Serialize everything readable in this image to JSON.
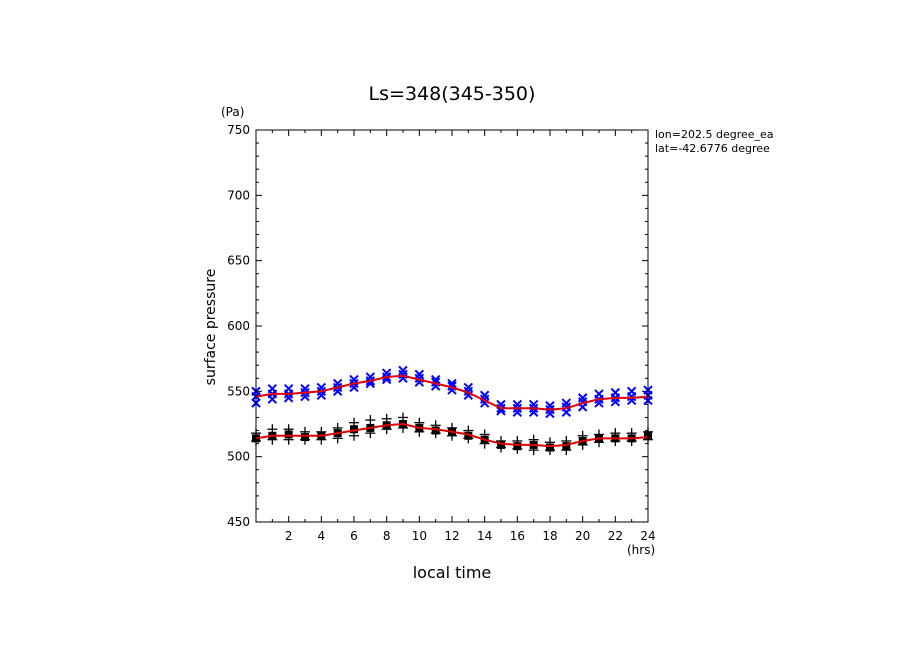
{
  "chart_data": {
    "type": "scatter",
    "title": "Ls=348(345-350)",
    "xlabel": "local time",
    "ylabel": "surface pressure",
    "xunit": "(hrs)",
    "yunit": "(Pa)",
    "xlim": [
      0,
      24
    ],
    "ylim": [
      450,
      750
    ],
    "x_ticks": [
      2,
      4,
      6,
      8,
      10,
      12,
      14,
      16,
      18,
      20,
      22,
      24
    ],
    "y_ticks": [
      450,
      500,
      550,
      600,
      650,
      700,
      750
    ],
    "annotations": [
      "lon=202.5 degree_ea",
      "lat=-42.6776 degree"
    ],
    "grid": false,
    "colors": {
      "upper": "#0000ff",
      "lower": "#000000",
      "fit": "#e00000"
    },
    "series": [
      {
        "marker": "x",
        "color": "#0000ff",
        "x": [
          0,
          1,
          2,
          3,
          4,
          5,
          6,
          7,
          8,
          9,
          10,
          11,
          12,
          13,
          14,
          15,
          16,
          17,
          18,
          19,
          20,
          21,
          22,
          23,
          24
        ],
        "y": [
          546,
          548,
          548,
          549,
          550,
          553,
          556,
          558,
          561,
          563,
          560,
          557,
          554,
          550,
          544,
          537,
          537,
          537,
          536,
          538,
          542,
          544,
          545,
          546,
          547
        ]
      },
      {
        "marker": "x",
        "color": "#0000ff",
        "x": [
          0,
          1,
          2,
          3,
          4,
          5,
          6,
          7,
          8,
          9,
          10,
          11,
          12,
          13,
          14,
          15,
          16,
          17,
          18,
          19,
          20,
          21,
          22,
          23,
          24
        ],
        "y": [
          541,
          544,
          545,
          546,
          547,
          550,
          553,
          556,
          559,
          560,
          557,
          554,
          551,
          547,
          541,
          535,
          534,
          534,
          533,
          534,
          538,
          541,
          542,
          543,
          543
        ]
      },
      {
        "marker": "x",
        "color": "#0000ff",
        "x": [
          0,
          1,
          2,
          3,
          4,
          5,
          6,
          7,
          8,
          9,
          10,
          11,
          12,
          13,
          14,
          15,
          16,
          17,
          18,
          19,
          20,
          21,
          22,
          23,
          24
        ],
        "y": [
          550,
          552,
          552,
          552,
          553,
          556,
          559,
          561,
          564,
          566,
          563,
          559,
          556,
          553,
          547,
          540,
          540,
          540,
          539,
          541,
          545,
          548,
          549,
          550,
          551
        ]
      },
      {
        "marker": "square",
        "color": "#000000",
        "x": [
          0,
          1,
          2,
          3,
          4,
          5,
          6,
          7,
          8,
          9,
          10,
          11,
          12,
          13,
          14,
          15,
          16,
          17,
          18,
          19,
          20,
          21,
          22,
          23,
          24
        ],
        "y": [
          514,
          516,
          517,
          515,
          516,
          518,
          521,
          522,
          524,
          525,
          522,
          520,
          519,
          516,
          513,
          509,
          508,
          509,
          507,
          508,
          512,
          514,
          514,
          514,
          516
        ]
      },
      {
        "marker": "+",
        "color": "#000000",
        "x": [
          0,
          1,
          2,
          3,
          4,
          5,
          6,
          7,
          8,
          9,
          10,
          11,
          12,
          13,
          14,
          15,
          16,
          17,
          18,
          19,
          20,
          21,
          22,
          23,
          24
        ],
        "y": [
          518,
          521,
          521,
          519,
          519,
          522,
          526,
          528,
          529,
          530,
          526,
          524,
          522,
          520,
          517,
          512,
          512,
          513,
          511,
          512,
          516,
          517,
          518,
          518,
          519
        ]
      },
      {
        "marker": "+",
        "color": "#000000",
        "x": [
          0,
          1,
          2,
          3,
          4,
          5,
          6,
          7,
          8,
          9,
          10,
          11,
          12,
          13,
          14,
          15,
          16,
          17,
          18,
          19,
          20,
          21,
          22,
          23,
          24
        ],
        "y": [
          512,
          513,
          513,
          513,
          513,
          514,
          516,
          518,
          521,
          522,
          519,
          518,
          516,
          514,
          510,
          507,
          506,
          505,
          505,
          505,
          509,
          511,
          512,
          512,
          513
        ]
      }
    ],
    "fits": [
      {
        "color": "#e00000",
        "x": [
          0,
          1,
          2,
          3,
          4,
          5,
          6,
          7,
          8,
          9,
          10,
          11,
          12,
          13,
          14,
          15,
          16,
          17,
          18,
          19,
          20,
          21,
          22,
          23,
          24
        ],
        "y": [
          546,
          548,
          548,
          549,
          550,
          553,
          556,
          558,
          561,
          562,
          559,
          556,
          553,
          549,
          543,
          537,
          537,
          537,
          536,
          537,
          541,
          544,
          545,
          545,
          546
        ]
      },
      {
        "color": "#e00000",
        "x": [
          0,
          1,
          2,
          3,
          4,
          5,
          6,
          7,
          8,
          9,
          10,
          11,
          12,
          13,
          14,
          15,
          16,
          17,
          18,
          19,
          20,
          21,
          22,
          23,
          24
        ],
        "y": [
          514,
          516,
          516,
          516,
          516,
          518,
          520,
          522,
          524,
          525,
          522,
          521,
          519,
          517,
          513,
          510,
          509,
          509,
          508,
          509,
          512,
          514,
          514,
          514,
          515
        ]
      }
    ]
  }
}
